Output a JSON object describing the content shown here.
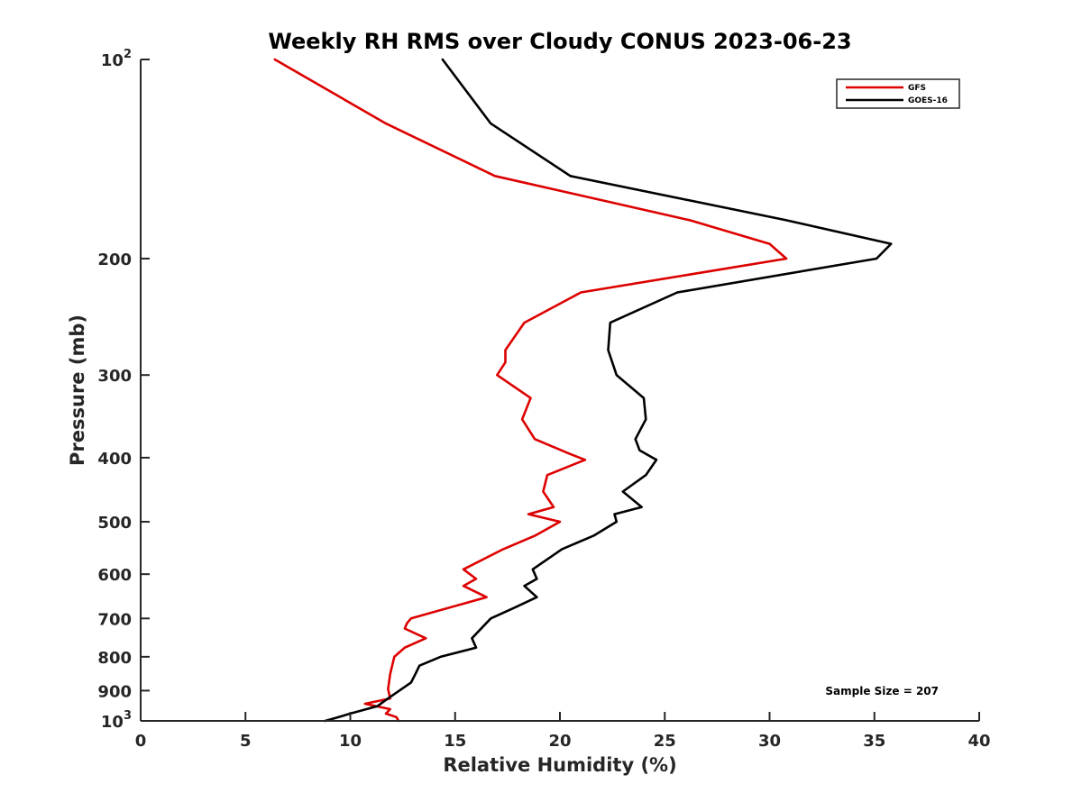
{
  "chart_data": {
    "type": "line",
    "title": "Weekly RH RMS over Cloudy CONUS 2023-06-23",
    "xlabel": "Relative Humidity (%)",
    "ylabel": "Pressure (mb)",
    "xlim": [
      0,
      40
    ],
    "ylim": [
      100,
      1000
    ],
    "y_scale": "log",
    "y_reversed": true,
    "grid": false,
    "legend_position": "top-right",
    "x_ticks": [
      "0",
      "5",
      "10",
      "15",
      "20",
      "25",
      "30",
      "35",
      "40"
    ],
    "y_ticks": [
      {
        "value": 100,
        "base": "10",
        "exp": "2"
      },
      {
        "value": 200,
        "label": "200"
      },
      {
        "value": 300,
        "label": "300"
      },
      {
        "value": 400,
        "label": "400"
      },
      {
        "value": 500,
        "label": "500"
      },
      {
        "value": 600,
        "label": "600"
      },
      {
        "value": 700,
        "label": "700"
      },
      {
        "value": 800,
        "label": "800"
      },
      {
        "value": 900,
        "label": "900"
      },
      {
        "value": 1000,
        "base": "10",
        "exp": "3"
      }
    ],
    "annotation": "Sample Size = 207",
    "series": [
      {
        "name": "GFS",
        "color": "#dd0000",
        "points": [
          [
            6.4,
            100
          ],
          [
            11.7,
            125
          ],
          [
            16.9,
            150
          ],
          [
            26.2,
            175
          ],
          [
            30.0,
            190
          ],
          [
            30.8,
            200
          ],
          [
            21.0,
            225
          ],
          [
            18.3,
            250
          ],
          [
            17.4,
            275
          ],
          [
            17.4,
            287
          ],
          [
            17.0,
            300
          ],
          [
            18.6,
            325
          ],
          [
            18.2,
            350
          ],
          [
            18.8,
            375
          ],
          [
            20.5,
            395
          ],
          [
            21.2,
            403
          ],
          [
            19.4,
            425
          ],
          [
            19.2,
            450
          ],
          [
            19.7,
            475
          ],
          [
            18.5,
            487
          ],
          [
            20.0,
            500
          ],
          [
            18.8,
            525
          ],
          [
            17.3,
            550
          ],
          [
            15.4,
            590
          ],
          [
            16.0,
            610
          ],
          [
            15.4,
            625
          ],
          [
            16.5,
            650
          ],
          [
            12.9,
            700
          ],
          [
            12.7,
            712
          ],
          [
            12.6,
            725
          ],
          [
            13.6,
            750
          ],
          [
            12.6,
            775
          ],
          [
            12.1,
            800
          ],
          [
            11.9,
            850
          ],
          [
            11.8,
            895
          ],
          [
            11.9,
            925
          ],
          [
            10.7,
            942
          ],
          [
            11.9,
            960
          ],
          [
            11.7,
            975
          ],
          [
            12.2,
            987
          ],
          [
            12.3,
            1000
          ]
        ]
      },
      {
        "name": "GOES-16",
        "color": "#000000",
        "points": [
          [
            14.4,
            100
          ],
          [
            16.7,
            125
          ],
          [
            20.5,
            150
          ],
          [
            30.8,
            175
          ],
          [
            35.8,
            190
          ],
          [
            35.1,
            200
          ],
          [
            25.6,
            225
          ],
          [
            22.4,
            250
          ],
          [
            22.3,
            275
          ],
          [
            22.7,
            300
          ],
          [
            24.0,
            325
          ],
          [
            24.1,
            350
          ],
          [
            23.6,
            375
          ],
          [
            23.8,
            390
          ],
          [
            24.6,
            403
          ],
          [
            24.1,
            425
          ],
          [
            23.0,
            450
          ],
          [
            23.9,
            475
          ],
          [
            22.6,
            487
          ],
          [
            22.7,
            500
          ],
          [
            21.6,
            525
          ],
          [
            20.1,
            550
          ],
          [
            18.7,
            590
          ],
          [
            18.9,
            610
          ],
          [
            18.3,
            625
          ],
          [
            18.9,
            650
          ],
          [
            17.8,
            675
          ],
          [
            16.7,
            700
          ],
          [
            15.8,
            750
          ],
          [
            16.0,
            775
          ],
          [
            14.3,
            800
          ],
          [
            13.3,
            825
          ],
          [
            13.1,
            850
          ],
          [
            12.9,
            875
          ],
          [
            11.8,
            925
          ],
          [
            11.3,
            950
          ],
          [
            10.0,
            975
          ],
          [
            9.3,
            990
          ],
          [
            8.8,
            1000
          ]
        ]
      }
    ]
  }
}
